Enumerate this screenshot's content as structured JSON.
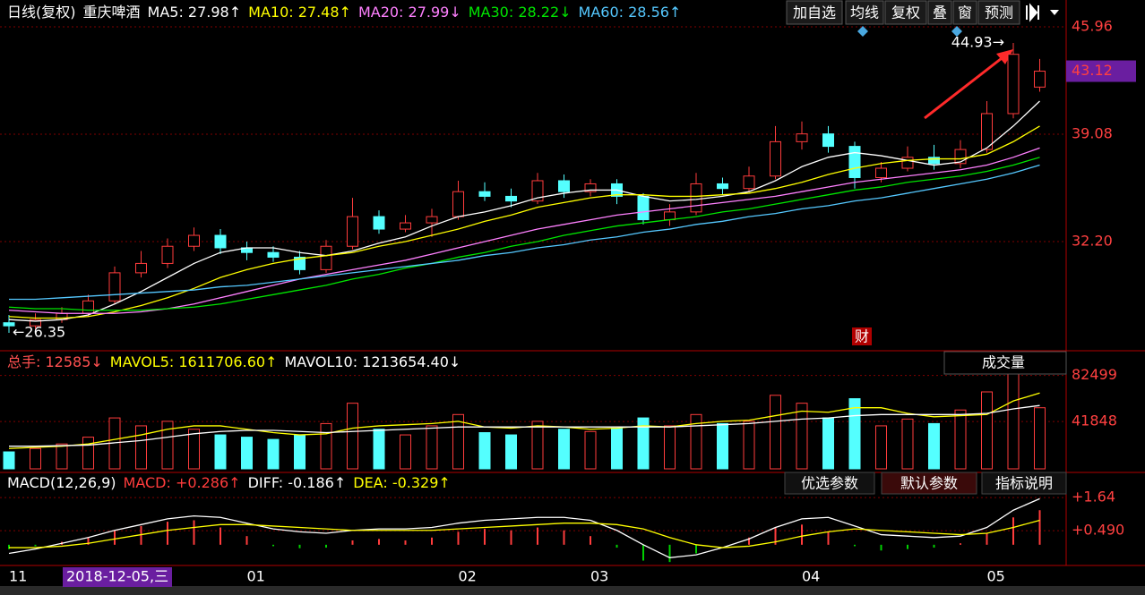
{
  "toolbar": {
    "buttons": [
      "加自选",
      "均线",
      "复权",
      "叠",
      "窗",
      "预测"
    ]
  },
  "chart_data": [
    {
      "type": "candlestick",
      "period": "日线(复权)",
      "stock": "重庆啤酒",
      "categories": [
        "11",
        null,
        null,
        null,
        null,
        null,
        null,
        null,
        null,
        "01",
        null,
        null,
        null,
        null,
        null,
        null,
        null,
        "02",
        null,
        null,
        null,
        null,
        "03",
        null,
        null,
        null,
        null,
        null,
        null,
        null,
        "04",
        null,
        null,
        null,
        null,
        null,
        null,
        "05",
        null,
        null
      ],
      "cursor_label": "2018-12-05,三",
      "candles": [
        [
          27.0,
          27.5,
          26.35,
          26.8
        ],
        [
          26.8,
          27.6,
          26.6,
          27.2
        ],
        [
          27.2,
          28.0,
          27.0,
          27.6
        ],
        [
          27.6,
          28.8,
          27.4,
          28.4
        ],
        [
          28.4,
          30.6,
          28.2,
          30.2
        ],
        [
          30.2,
          31.6,
          29.9,
          30.8
        ],
        [
          30.8,
          32.4,
          30.5,
          31.9
        ],
        [
          31.9,
          33.1,
          31.6,
          32.6
        ],
        [
          32.6,
          33.0,
          31.4,
          31.8
        ],
        [
          31.8,
          32.2,
          31.0,
          31.5
        ],
        [
          31.5,
          31.9,
          30.9,
          31.2
        ],
        [
          31.2,
          31.6,
          30.1,
          30.4
        ],
        [
          30.4,
          32.3,
          30.2,
          31.9
        ],
        [
          31.9,
          35.0,
          31.7,
          33.8
        ],
        [
          33.8,
          34.2,
          32.7,
          33.0
        ],
        [
          33.0,
          33.9,
          32.8,
          33.4
        ],
        [
          33.4,
          34.3,
          32.5,
          33.8
        ],
        [
          33.8,
          36.1,
          33.6,
          35.4
        ],
        [
          35.4,
          36.0,
          34.8,
          35.1
        ],
        [
          35.1,
          35.6,
          34.4,
          34.8
        ],
        [
          34.8,
          36.6,
          34.6,
          36.1
        ],
        [
          36.1,
          36.5,
          35.0,
          35.4
        ],
        [
          35.4,
          36.2,
          35.1,
          35.9
        ],
        [
          35.9,
          36.2,
          34.6,
          35.1
        ],
        [
          35.1,
          35.3,
          33.3,
          33.6
        ],
        [
          33.6,
          34.6,
          33.2,
          34.1
        ],
        [
          34.1,
          36.6,
          33.9,
          35.9
        ],
        [
          35.9,
          36.3,
          35.2,
          35.6
        ],
        [
          35.6,
          37.0,
          35.4,
          36.4
        ],
        [
          36.4,
          39.6,
          36.2,
          38.6
        ],
        [
          38.6,
          39.9,
          38.1,
          39.1
        ],
        [
          39.1,
          39.6,
          37.9,
          38.3
        ],
        [
          38.3,
          38.6,
          35.6,
          36.3
        ],
        [
          36.3,
          37.3,
          36.0,
          36.9
        ],
        [
          36.9,
          38.3,
          36.7,
          37.6
        ],
        [
          37.6,
          38.4,
          36.8,
          37.2
        ],
        [
          37.2,
          38.7,
          36.9,
          38.1
        ],
        [
          38.1,
          41.2,
          37.9,
          40.4
        ],
        [
          40.4,
          44.93,
          40.1,
          44.2
        ],
        [
          42.1,
          43.9,
          41.8,
          43.12
        ]
      ],
      "up_color": "#ff3c3c",
      "down_color": "#54ffff",
      "series": [
        {
          "name": "MA5: 27.98↑",
          "color": "#ffffff",
          "values": [
            27.2,
            27.1,
            27.2,
            27.5,
            28.2,
            29.0,
            29.9,
            30.8,
            31.5,
            31.8,
            31.8,
            31.5,
            31.3,
            31.6,
            32.1,
            32.5,
            33.2,
            33.8,
            34.1,
            34.5,
            35.0,
            35.3,
            35.5,
            35.5,
            35.1,
            34.8,
            34.9,
            35.1,
            35.4,
            36.1,
            37.0,
            37.6,
            37.9,
            37.7,
            37.4,
            37.1,
            37.3,
            38.2,
            39.6,
            41.2
          ]
        },
        {
          "name": "MA10: 27.48↑",
          "color": "#ffff00",
          "values": [
            27.4,
            27.3,
            27.3,
            27.4,
            27.7,
            28.1,
            28.6,
            29.2,
            29.9,
            30.4,
            30.8,
            31.1,
            31.3,
            31.5,
            31.9,
            32.2,
            32.6,
            33.0,
            33.5,
            33.9,
            34.4,
            34.7,
            35.0,
            35.2,
            35.2,
            35.1,
            35.1,
            35.2,
            35.3,
            35.6,
            36.0,
            36.5,
            36.9,
            37.2,
            37.4,
            37.5,
            37.5,
            37.8,
            38.6,
            39.6
          ]
        },
        {
          "name": "MA20: 27.99↓",
          "color": "#ff80ff",
          "values": [
            27.8,
            27.7,
            27.6,
            27.6,
            27.6,
            27.7,
            27.9,
            28.2,
            28.6,
            29.0,
            29.4,
            29.8,
            30.1,
            30.4,
            30.7,
            31.0,
            31.4,
            31.8,
            32.2,
            32.6,
            33.0,
            33.3,
            33.6,
            33.9,
            34.1,
            34.3,
            34.5,
            34.7,
            34.9,
            35.1,
            35.4,
            35.7,
            36.0,
            36.2,
            36.4,
            36.6,
            36.8,
            37.1,
            37.6,
            38.2
          ]
        },
        {
          "name": "MA30: 28.22↓",
          "color": "#00e600",
          "values": [
            28.0,
            27.9,
            27.9,
            27.8,
            27.8,
            27.8,
            27.9,
            28.0,
            28.2,
            28.5,
            28.8,
            29.1,
            29.4,
            29.8,
            30.1,
            30.5,
            30.8,
            31.2,
            31.5,
            31.9,
            32.2,
            32.6,
            32.9,
            33.2,
            33.4,
            33.6,
            33.8,
            34.1,
            34.3,
            34.6,
            34.9,
            35.2,
            35.5,
            35.7,
            36.0,
            36.2,
            36.4,
            36.7,
            37.1,
            37.6
          ]
        },
        {
          "name": "MA60: 28.56↑",
          "color": "#55c8ff",
          "values": [
            28.5,
            28.5,
            28.6,
            28.7,
            28.8,
            28.9,
            29.0,
            29.1,
            29.3,
            29.4,
            29.6,
            29.8,
            30.0,
            30.2,
            30.4,
            30.6,
            30.8,
            31.0,
            31.3,
            31.5,
            31.8,
            32.0,
            32.3,
            32.5,
            32.8,
            33.0,
            33.3,
            33.5,
            33.8,
            34.0,
            34.3,
            34.5,
            34.8,
            35.0,
            35.3,
            35.6,
            35.9,
            36.2,
            36.6,
            37.1
          ]
        }
      ],
      "ylim": [
        25.32,
        47.68
      ],
      "yticks": [
        45.96,
        39.08,
        {
          "value": 32.2,
          "label": "32.20"
        }
      ],
      "last_price": 43.12,
      "high_annotation": {
        "value": 44.93,
        "label": "44.93→"
      },
      "low_annotation": {
        "value": 26.35,
        "label": "←26.35"
      },
      "event_marker": "财",
      "grid": true
    },
    {
      "type": "volume",
      "header": "总手: 12585↓",
      "indicator": "成交量",
      "values": [
        15000,
        18000,
        22000,
        28000,
        45000,
        38000,
        42000,
        35000,
        30000,
        28000,
        26000,
        30000,
        40000,
        58000,
        35000,
        30000,
        38000,
        48000,
        32000,
        30000,
        42000,
        35000,
        33000,
        36000,
        45000,
        38000,
        48000,
        40000,
        42000,
        65000,
        58000,
        45000,
        62000,
        38000,
        44000,
        40000,
        52000,
        68000,
        98000,
        54000
      ],
      "series": [
        {
          "name": "MAVOL5: 1611706.60↑",
          "color": "#ffff00",
          "values": [
            18000,
            19000,
            20000,
            22000,
            26000,
            30000,
            35000,
            38000,
            38000,
            35000,
            32000,
            30000,
            31000,
            36000,
            38000,
            39000,
            40000,
            42000,
            37000,
            36000,
            38000,
            37000,
            35000,
            36000,
            38000,
            37000,
            40000,
            42000,
            43000,
            47000,
            51000,
            50000,
            54000,
            54000,
            49000,
            46000,
            47000,
            48000,
            60000,
            67000
          ]
        },
        {
          "name": "MAVOL10: 1213654.40↓",
          "color": "#ffffff",
          "values": [
            20000,
            20000,
            20500,
            21000,
            23000,
            25000,
            28000,
            31000,
            33000,
            34000,
            34000,
            33000,
            32000,
            33000,
            34000,
            35000,
            36000,
            37000,
            37000,
            37000,
            37000,
            37000,
            37000,
            37000,
            37000,
            37000,
            38000,
            39000,
            40000,
            42000,
            44000,
            45000,
            47000,
            48000,
            48000,
            48000,
            48000,
            49000,
            53000,
            56000
          ]
        }
      ],
      "ylim": [
        0,
        102000
      ],
      "yticks": [
        82499,
        41848
      ],
      "grid": true
    },
    {
      "type": "macd",
      "header": "MACD(12,26,9)",
      "buttons": [
        "优选参数",
        "默认参数",
        "指标说明"
      ],
      "values": [
        -0.15,
        -0.05,
        0.1,
        0.25,
        0.5,
        0.65,
        0.8,
        0.85,
        0.6,
        0.3,
        -0.05,
        -0.12,
        -0.1,
        0.15,
        0.2,
        0.15,
        0.25,
        0.45,
        0.55,
        0.5,
        0.6,
        0.5,
        0.3,
        -0.1,
        -0.55,
        -0.6,
        -0.3,
        0.0,
        0.25,
        0.6,
        0.7,
        0.45,
        -0.05,
        -0.2,
        -0.15,
        -0.1,
        0.05,
        0.4,
        0.95,
        1.2
      ],
      "bar_label": "MACD: +0.286↑",
      "bar_color": "#ff3c3c",
      "negative_color": "#00d000",
      "series": [
        {
          "name": "DIFF: -0.186↑",
          "color": "#ffffff",
          "values": [
            -0.3,
            -0.15,
            0.05,
            0.25,
            0.5,
            0.7,
            0.9,
            1.0,
            0.95,
            0.75,
            0.55,
            0.45,
            0.4,
            0.5,
            0.55,
            0.55,
            0.6,
            0.75,
            0.85,
            0.9,
            0.95,
            0.95,
            0.85,
            0.5,
            0.0,
            -0.45,
            -0.35,
            -0.1,
            0.2,
            0.6,
            0.9,
            0.95,
            0.65,
            0.35,
            0.3,
            0.25,
            0.3,
            0.6,
            1.2,
            1.6
          ]
        },
        {
          "name": "DEA: -0.329↑",
          "color": "#ffff00",
          "values": [
            -0.1,
            -0.1,
            -0.05,
            0.05,
            0.2,
            0.35,
            0.5,
            0.6,
            0.7,
            0.7,
            0.65,
            0.6,
            0.55,
            0.5,
            0.5,
            0.5,
            0.5,
            0.55,
            0.6,
            0.65,
            0.7,
            0.75,
            0.75,
            0.7,
            0.55,
            0.25,
            0.0,
            -0.1,
            -0.05,
            0.1,
            0.3,
            0.45,
            0.55,
            0.5,
            0.45,
            0.4,
            0.35,
            0.4,
            0.6,
            0.85
          ]
        }
      ],
      "ylim": [
        -0.72,
        2.45
      ],
      "yticks": [
        {
          "value": 1.64,
          "label": "+1.64"
        },
        {
          "value": 0.49,
          "label": "+0.490"
        }
      ],
      "grid": true
    }
  ]
}
